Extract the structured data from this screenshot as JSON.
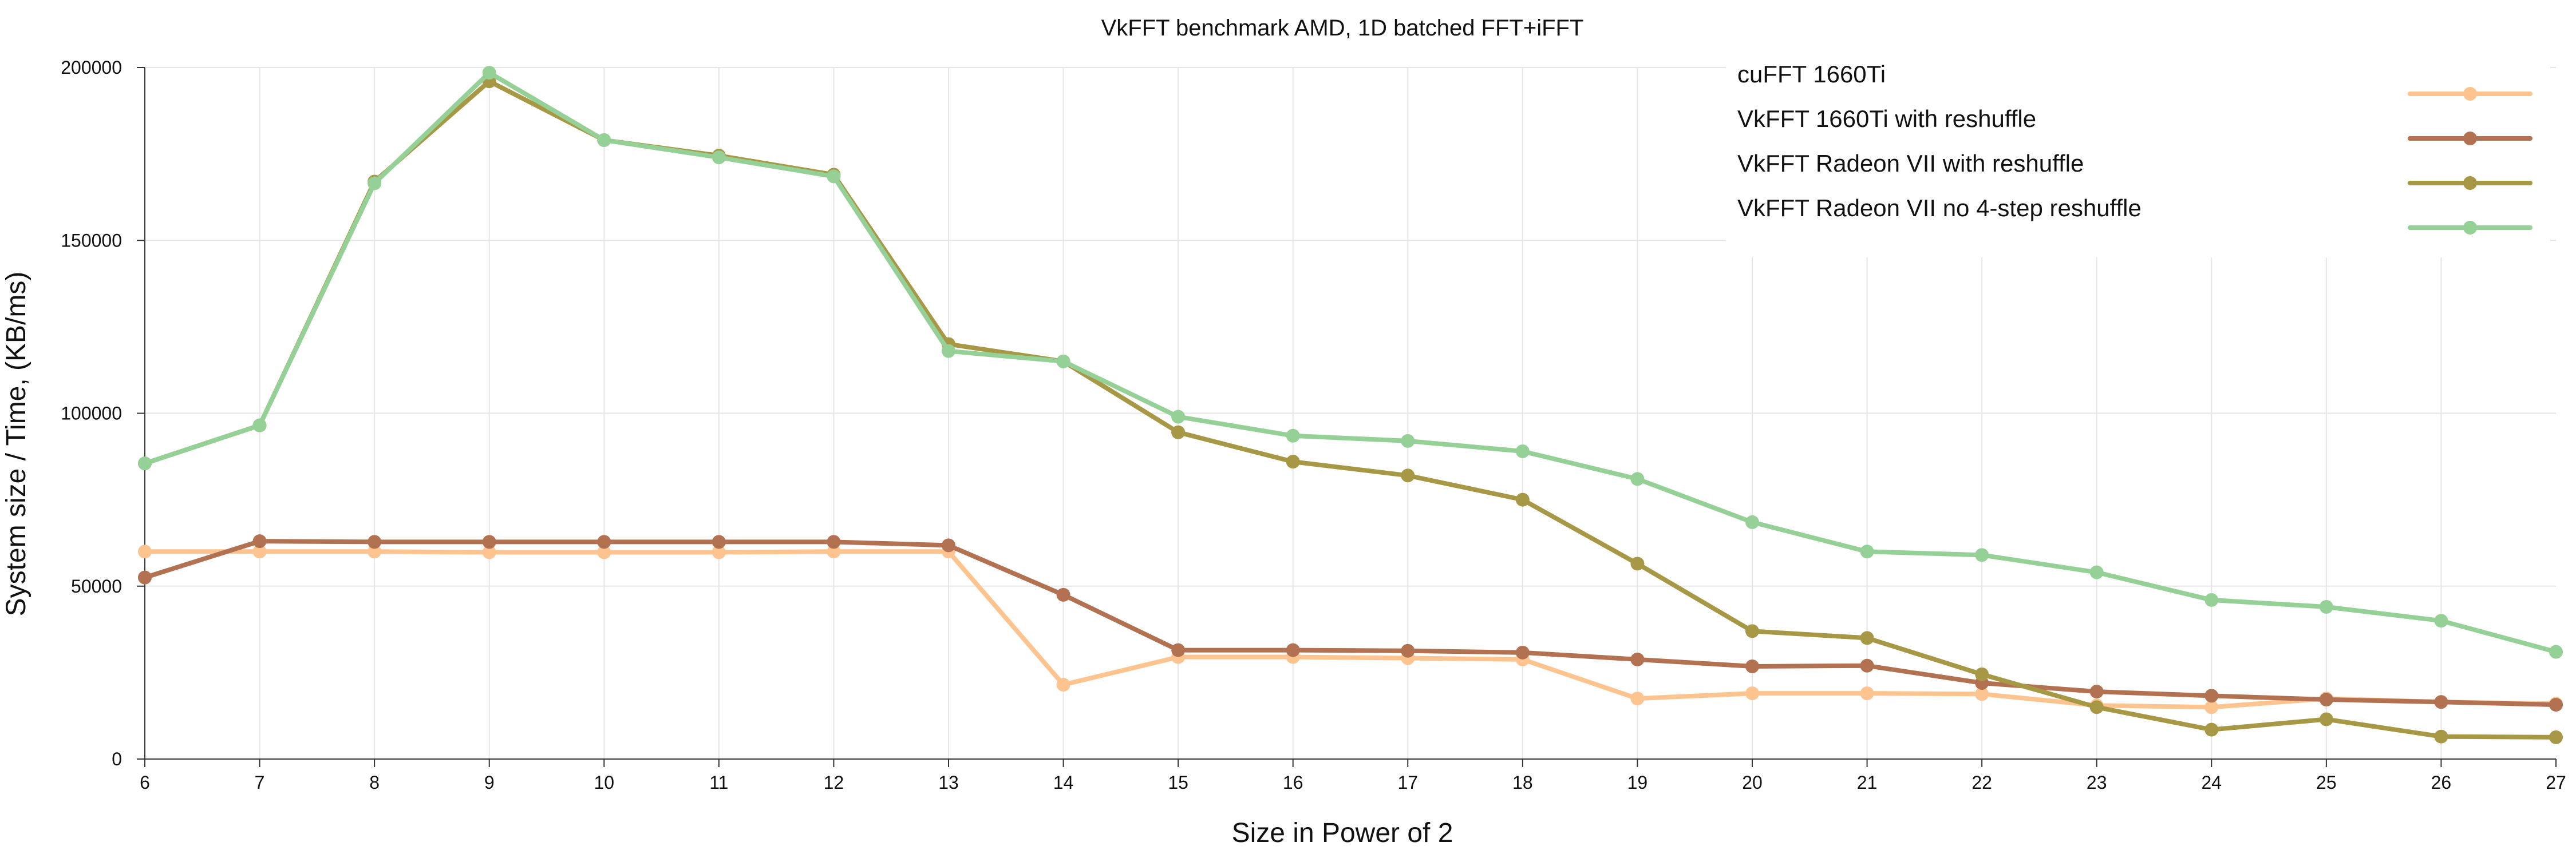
{
  "chart_data": {
    "type": "line",
    "title": "VkFFT benchmark AMD, 1D batched FFT+iFFT",
    "xlabel": "Size in Power of 2",
    "ylabel": "System size / Time, (KB/ms)",
    "x": [
      6,
      7,
      8,
      9,
      10,
      11,
      12,
      13,
      14,
      15,
      16,
      17,
      18,
      19,
      20,
      21,
      22,
      23,
      24,
      25,
      26,
      27
    ],
    "xlim": [
      6,
      27
    ],
    "ylim": [
      0,
      200000
    ],
    "yticks": [
      0,
      50000,
      100000,
      150000,
      200000
    ],
    "grid": true,
    "legend_position": "top-right",
    "series": [
      {
        "name": "cuFFT 1660Ti",
        "color": "#fdc490",
        "values": [
          60000,
          60000,
          60000,
          59800,
          59800,
          59800,
          60000,
          60000,
          21500,
          29500,
          29500,
          29200,
          28800,
          17500,
          19000,
          19000,
          18800,
          15500,
          15000,
          17500,
          16500,
          16000
        ]
      },
      {
        "name": "VkFFT 1660Ti with reshuffle",
        "color": "#b27150",
        "values": [
          52500,
          63000,
          62800,
          62800,
          62800,
          62800,
          62800,
          61800,
          47500,
          31500,
          31500,
          31300,
          30800,
          28800,
          26800,
          27000,
          22000,
          19500,
          18300,
          17200,
          16500,
          15700
        ]
      },
      {
        "name": "VkFFT Radeon VII with reshuffle",
        "color": "#a79845",
        "values": [
          85500,
          96500,
          167000,
          196000,
          179000,
          174500,
          169000,
          120000,
          115000,
          94500,
          86000,
          82000,
          75000,
          56500,
          37000,
          35000,
          24500,
          15000,
          8500,
          11500,
          6500,
          6300
        ]
      },
      {
        "name": "VkFFT Radeon VII no 4-step reshuffle",
        "color": "#95d197",
        "values": [
          85500,
          96500,
          166500,
          198500,
          179000,
          174000,
          168500,
          118000,
          115000,
          99000,
          93500,
          92000,
          89000,
          81000,
          68500,
          60000,
          59000,
          54000,
          46000,
          44000,
          40000,
          31000
        ]
      }
    ]
  }
}
